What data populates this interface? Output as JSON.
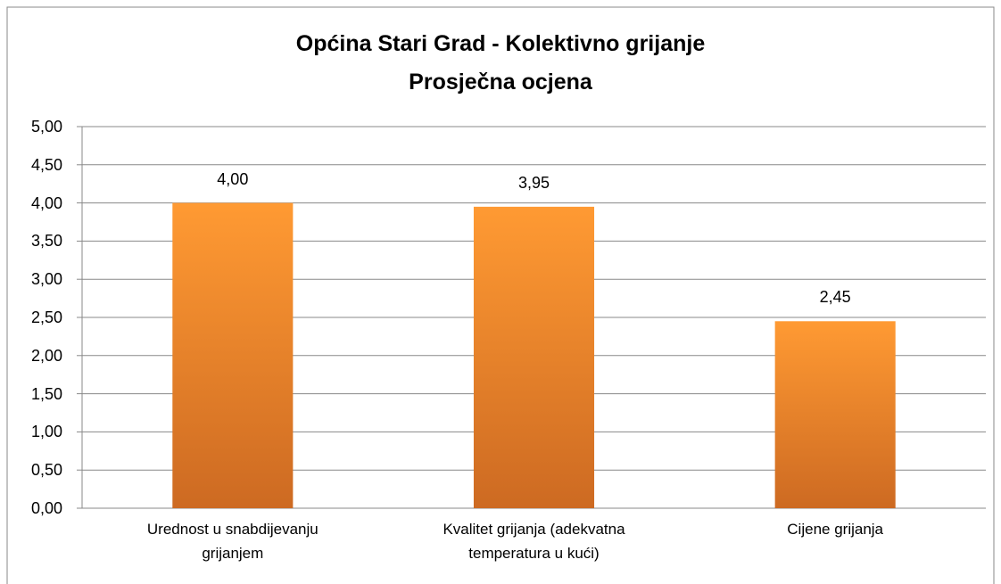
{
  "chart_data": {
    "type": "bar",
    "title": "Općina Stari Grad - Kolektivno grijanje\nProsječna ocjena",
    "categories": [
      "Urednost u snabdijevanju\ngrijanjem",
      "Kvalitet grijanja (adekvatna\ntemperatura u kući)",
      "Cijene grijanja"
    ],
    "values": [
      4.0,
      3.95,
      2.45
    ],
    "value_labels": [
      "4,00",
      "3,95",
      "2,45"
    ],
    "color": "#f28a2a",
    "ylim": [
      0,
      5
    ],
    "yticks": [
      {
        "value": 0,
        "label": "0,00"
      },
      {
        "value": 0.5,
        "label": "0,50"
      },
      {
        "value": 1,
        "label": "1,00"
      },
      {
        "value": 1.5,
        "label": "1,50"
      },
      {
        "value": 2,
        "label": "2,00"
      },
      {
        "value": 2.5,
        "label": "2,50"
      },
      {
        "value": 3,
        "label": "3,00"
      },
      {
        "value": 3.5,
        "label": "3,50"
      },
      {
        "value": 4,
        "label": "4,00"
      },
      {
        "value": 4.5,
        "label": "4,50"
      },
      {
        "value": 5,
        "label": "5,00"
      }
    ],
    "grid": true
  }
}
